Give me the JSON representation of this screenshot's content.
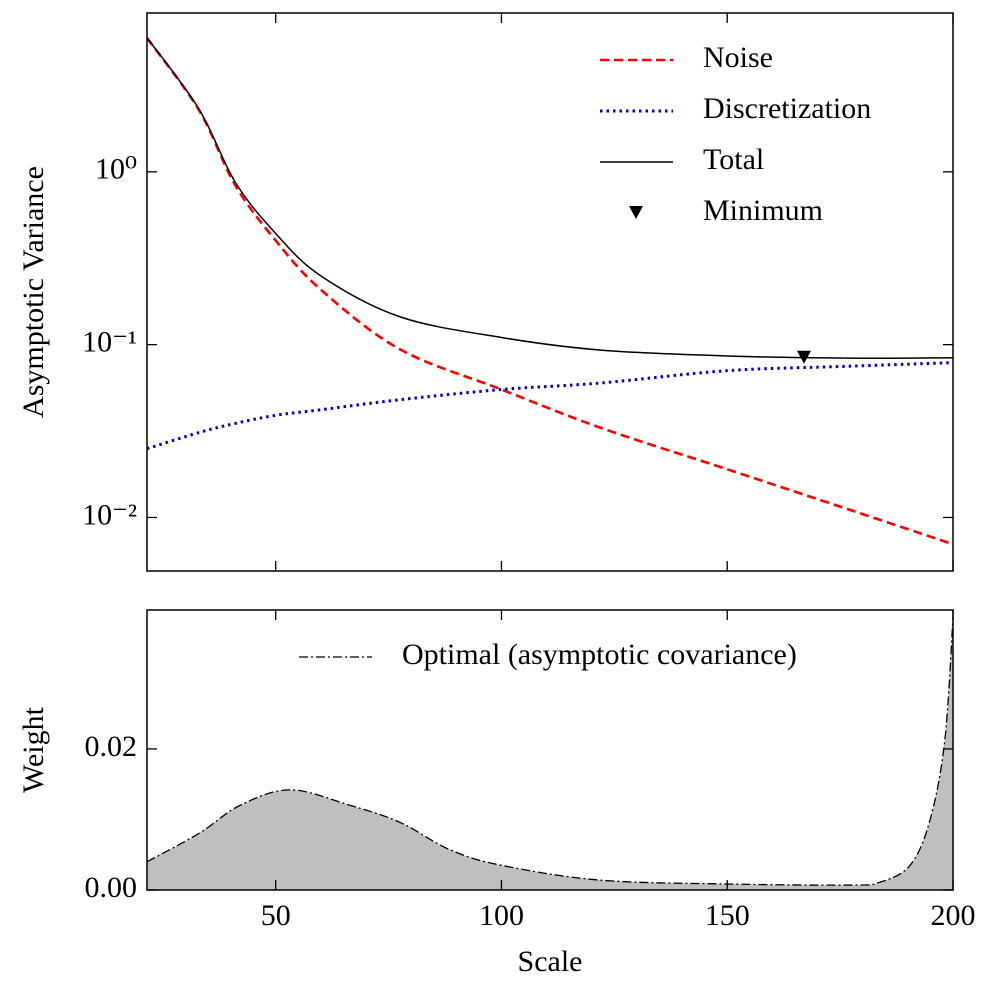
{
  "chart_data": [
    {
      "type": "line",
      "ylabel": "Asymptotic Variance",
      "yscale": "log",
      "xlim": [
        21.5,
        200
      ],
      "ylim": [
        0.0049,
        8.3
      ],
      "xticks": [
        50,
        100,
        150,
        200
      ],
      "yticks": [
        {
          "value": 0.01,
          "label": "10⁻²"
        },
        {
          "value": 0.1,
          "label": "10⁻¹"
        },
        {
          "value": 1,
          "label": "10⁰"
        }
      ],
      "legend": "upper right",
      "series": [
        {
          "name": "Noise",
          "color": "#ff0000",
          "style": "dashed",
          "x": [
            21.5,
            33,
            41,
            50,
            60,
            77.5,
            100,
            122,
            150,
            177,
            200
          ],
          "values": [
            5.95,
            2.28,
            0.84,
            0.4,
            0.208,
            0.094,
            0.055,
            0.033,
            0.019,
            0.0111,
            0.007
          ]
        },
        {
          "name": "Discretization",
          "color": "#0000cc",
          "style": "dotted",
          "x": [
            21.5,
            33,
            41,
            50,
            60,
            77.5,
            100,
            122,
            150,
            177,
            200
          ],
          "values": [
            0.025,
            0.031,
            0.035,
            0.039,
            0.042,
            0.048,
            0.055,
            0.06,
            0.0707,
            0.075,
            0.0787
          ]
        },
        {
          "name": "Total",
          "color": "#000000",
          "style": "solid",
          "x": [
            21.5,
            33,
            41,
            50,
            60,
            77.5,
            100,
            122,
            150,
            177,
            200
          ],
          "values": [
            5.975,
            2.31,
            0.875,
            0.44,
            0.25,
            0.145,
            0.11,
            0.093,
            0.086,
            0.0835,
            0.084
          ]
        },
        {
          "name": "Minimum",
          "color": "#000000",
          "style": "marker",
          "x": [
            167
          ],
          "values": [
            0.084
          ]
        }
      ]
    },
    {
      "type": "area",
      "xlabel": "Scale",
      "ylabel": "Weight",
      "xlim": [
        21.5,
        200
      ],
      "ylim": [
        0,
        0.0397
      ],
      "xticks": [
        50,
        100,
        150,
        200
      ],
      "yticks": [
        {
          "value": 0,
          "label": "0.00"
        },
        {
          "value": 0.02,
          "label": "0.02"
        }
      ],
      "legend": "upper right",
      "series": [
        {
          "name": "Optimal (asymptotic covariance)",
          "color": "#000000",
          "fill": "#bfbfbf",
          "style": "dashdot",
          "x": [
            21.5,
            33.2,
            42.1,
            53.2,
            66.5,
            77.5,
            88.6,
            100,
            121.8,
            150,
            177.2,
            183.8,
            190.5,
            194.9,
            198.2,
            200
          ],
          "values": [
            0.004,
            0.0081,
            0.012,
            0.0142,
            0.012,
            0.0096,
            0.0057,
            0.0035,
            0.0014,
            0.00085,
            0.0007,
            0.0011,
            0.0035,
            0.0099,
            0.0213,
            0.0386
          ]
        }
      ]
    }
  ]
}
